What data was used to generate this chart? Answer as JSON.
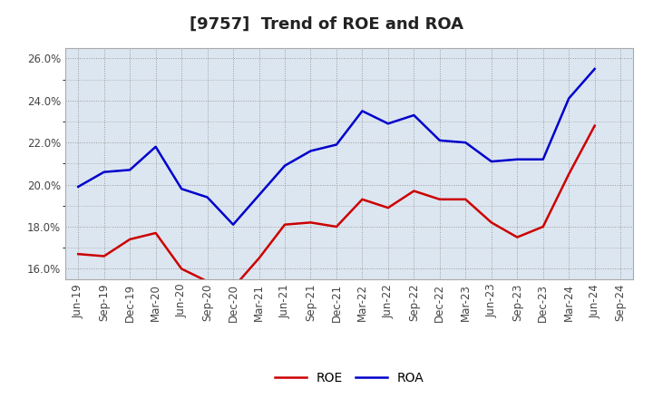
{
  "title": "[9757]  Trend of ROE and ROA",
  "x_labels": [
    "Jun-19",
    "Sep-19",
    "Dec-19",
    "Mar-20",
    "Jun-20",
    "Sep-20",
    "Dec-20",
    "Mar-21",
    "Jun-21",
    "Sep-21",
    "Dec-21",
    "Mar-22",
    "Jun-22",
    "Sep-22",
    "Dec-22",
    "Mar-23",
    "Jun-23",
    "Sep-23",
    "Dec-23",
    "Mar-24",
    "Jun-24",
    "Sep-24"
  ],
  "roe": [
    16.7,
    16.6,
    17.4,
    17.7,
    16.0,
    15.4,
    15.1,
    16.5,
    18.1,
    18.2,
    18.0,
    19.3,
    18.9,
    19.7,
    19.3,
    19.3,
    18.2,
    17.5,
    18.0,
    20.5,
    22.8,
    null
  ],
  "roa": [
    19.9,
    20.6,
    20.7,
    21.8,
    19.8,
    19.4,
    18.1,
    19.5,
    20.9,
    21.6,
    21.9,
    23.5,
    22.9,
    23.3,
    22.1,
    22.0,
    21.1,
    21.2,
    21.2,
    24.1,
    25.5,
    null
  ],
  "roe_color": "#cc0000",
  "roa_color": "#0000cc",
  "bg_color": "#ffffff",
  "plot_bg_color": "#dce6f0",
  "grid_color": "#999999",
  "ylim": [
    15.5,
    26.5
  ],
  "yticks": [
    16.0,
    18.0,
    20.0,
    22.0,
    24.0,
    26.0
  ],
  "title_fontsize": 13,
  "tick_fontsize": 8.5,
  "legend_fontsize": 10
}
